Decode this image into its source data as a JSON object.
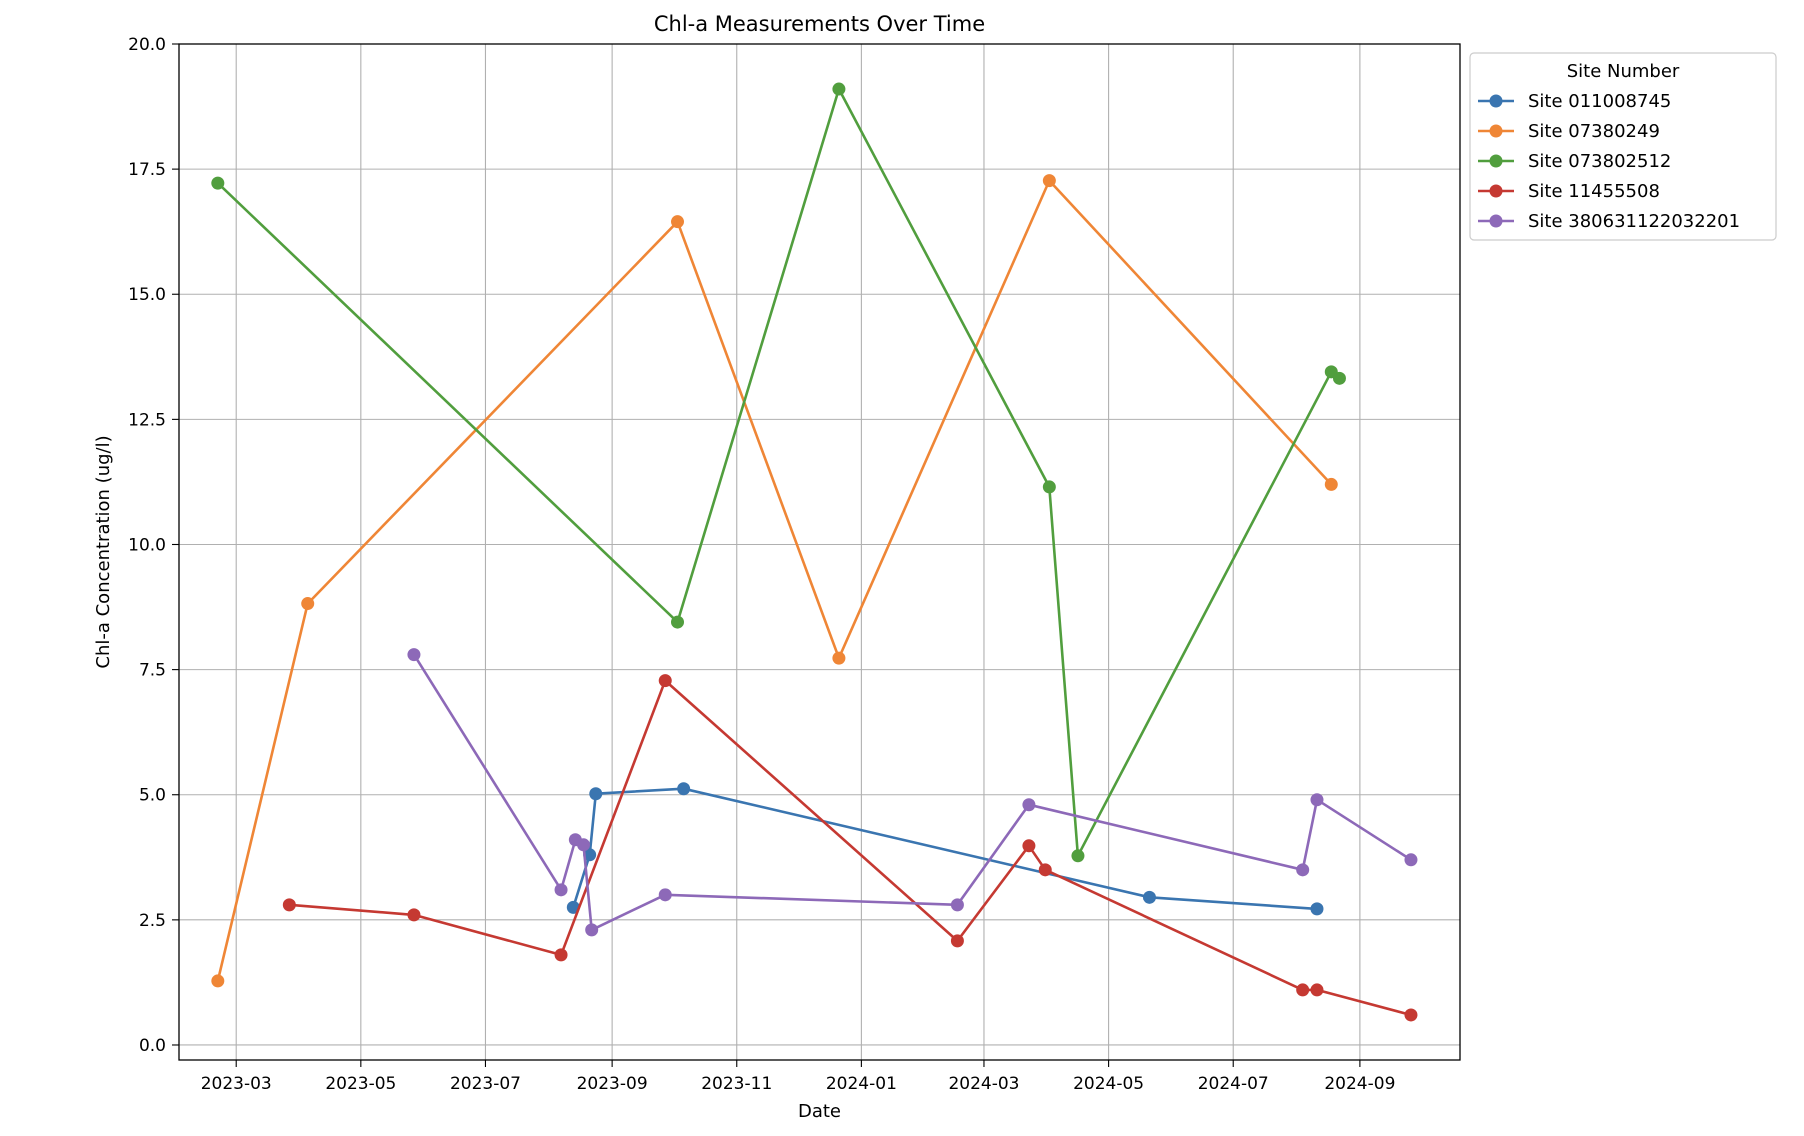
{
  "chart_data": {
    "type": "line",
    "title": "Chl-a Measurements Over Time",
    "xlabel": "Date",
    "ylabel": "Chl-a Concentration (ug/l)",
    "xlim": [
      "2023-02-01",
      "2024-10-20"
    ],
    "ylim": [
      -0.3,
      20.0
    ],
    "x_ticks": [
      "2023-03-01",
      "2023-05-01",
      "2023-07-01",
      "2023-09-01",
      "2023-11-01",
      "2024-01-01",
      "2024-03-01",
      "2024-05-01",
      "2024-07-01",
      "2024-09-01"
    ],
    "x_tick_labels": [
      "2023-03",
      "2023-05",
      "2023-07",
      "2023-09",
      "2023-11",
      "2024-01",
      "2024-03",
      "2024-05",
      "2024-07",
      "2024-09"
    ],
    "y_ticks": [
      0.0,
      2.5,
      5.0,
      7.5,
      10.0,
      12.5,
      15.0,
      17.5,
      20.0
    ],
    "y_tick_labels": [
      "0.0",
      "2.5",
      "5.0",
      "7.5",
      "10.0",
      "12.5",
      "15.0",
      "17.5",
      "20.0"
    ],
    "grid": true,
    "legend": {
      "title": "Site Number",
      "placement": "outside-top-right"
    },
    "series": [
      {
        "name": "Site 011008745",
        "color": "#3a75b0",
        "points": [
          {
            "x": "2023-08-13",
            "y": 2.75
          },
          {
            "x": "2023-08-21",
            "y": 3.8
          },
          {
            "x": "2023-08-24",
            "y": 5.02
          },
          {
            "x": "2023-10-06",
            "y": 5.12
          },
          {
            "x": "2024-05-21",
            "y": 2.95
          },
          {
            "x": "2024-08-11",
            "y": 2.72
          }
        ]
      },
      {
        "name": "Site 07380249",
        "color": "#ef8636",
        "points": [
          {
            "x": "2023-02-20",
            "y": 1.28
          },
          {
            "x": "2023-04-05",
            "y": 8.82
          },
          {
            "x": "2023-10-03",
            "y": 16.45
          },
          {
            "x": "2023-12-21",
            "y": 7.73
          },
          {
            "x": "2024-04-02",
            "y": 17.27
          },
          {
            "x": "2024-08-18",
            "y": 11.2
          }
        ]
      },
      {
        "name": "Site 073802512",
        "color": "#519e3e",
        "points": [
          {
            "x": "2023-02-20",
            "y": 17.22
          },
          {
            "x": "2023-10-03",
            "y": 8.45
          },
          {
            "x": "2023-12-21",
            "y": 19.1
          },
          {
            "x": "2024-04-02",
            "y": 11.15
          },
          {
            "x": "2024-04-16",
            "y": 3.78
          },
          {
            "x": "2024-08-18",
            "y": 13.45
          },
          {
            "x": "2024-08-22",
            "y": 13.32
          }
        ]
      },
      {
        "name": "Site 11455508",
        "color": "#c53932",
        "points": [
          {
            "x": "2023-03-27",
            "y": 2.8
          },
          {
            "x": "2023-05-27",
            "y": 2.6
          },
          {
            "x": "2023-08-07",
            "y": 1.8
          },
          {
            "x": "2023-09-27",
            "y": 7.28
          },
          {
            "x": "2024-02-17",
            "y": 2.08
          },
          {
            "x": "2024-03-23",
            "y": 3.98
          },
          {
            "x": "2024-03-31",
            "y": 3.5
          },
          {
            "x": "2024-08-04",
            "y": 1.1
          },
          {
            "x": "2024-08-11",
            "y": 1.1
          },
          {
            "x": "2024-09-26",
            "y": 0.6
          }
        ]
      },
      {
        "name": "Site 380631122032201",
        "color": "#8d69b8",
        "points": [
          {
            "x": "2023-05-27",
            "y": 7.8
          },
          {
            "x": "2023-08-07",
            "y": 3.1
          },
          {
            "x": "2023-08-14",
            "y": 4.1
          },
          {
            "x": "2023-08-18",
            "y": 4.0
          },
          {
            "x": "2023-08-22",
            "y": 2.3
          },
          {
            "x": "2023-09-27",
            "y": 3.0
          },
          {
            "x": "2024-02-17",
            "y": 2.8
          },
          {
            "x": "2024-03-23",
            "y": 4.8
          },
          {
            "x": "2024-08-04",
            "y": 3.5
          },
          {
            "x": "2024-08-11",
            "y": 4.9
          },
          {
            "x": "2024-09-26",
            "y": 3.7
          }
        ]
      }
    ]
  }
}
